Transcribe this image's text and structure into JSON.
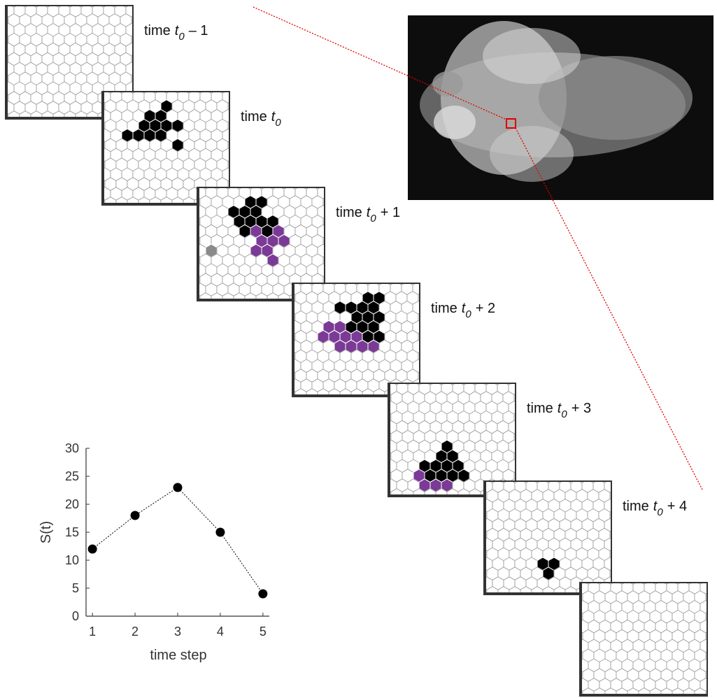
{
  "panel_labels": [
    {
      "word": "time",
      "var": "t",
      "sub": "0",
      "offset": "– 1"
    },
    {
      "word": "time",
      "var": "t",
      "sub": "0"
    },
    {
      "word": "time",
      "var": "t",
      "sub": "0",
      "offset": "+ 1"
    },
    {
      "word": "time",
      "var": "t",
      "sub": "0",
      "offset": "+ 2"
    },
    {
      "word": "time",
      "var": "t",
      "sub": "0",
      "offset": "+ 3"
    },
    {
      "word": "time",
      "var": "t",
      "sub": "0",
      "offset": "+ 4"
    }
  ],
  "chart_data": {
    "type": "line",
    "x": [
      1,
      2,
      3,
      4,
      5
    ],
    "values": [
      12,
      18,
      23,
      15,
      4
    ],
    "xlabel": "time step",
    "ylabel": "S(t)",
    "color": "#000000",
    "xlim": [
      0.85,
      5.15
    ],
    "ylim": [
      0,
      30
    ],
    "xticks": [
      1,
      2,
      3,
      4,
      5
    ],
    "yticks": [
      0,
      5,
      10,
      15,
      20,
      25,
      30
    ]
  }
}
